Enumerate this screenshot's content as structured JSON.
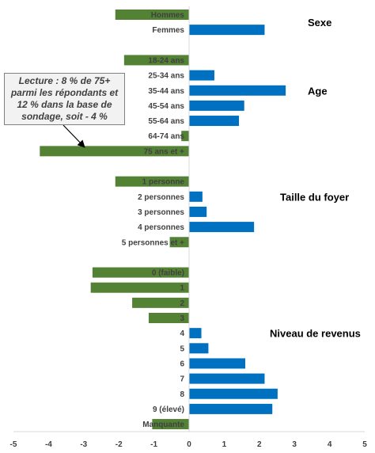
{
  "colors": {
    "positive": "#0070c0",
    "negative": "#548235",
    "axis": "#d9d9d9",
    "text": "#404040"
  },
  "annotation": {
    "text": "Lecture : 8 % de 75+ parmi les répondants et 12 % dans la base de sondage, soit - 4 %"
  },
  "chart_data": {
    "type": "bar",
    "orientation": "horizontal",
    "xlim": [
      -5,
      5
    ],
    "xticks": [
      "-5",
      "-4",
      "-3",
      "-2",
      "-1",
      "0",
      "1",
      "2",
      "3",
      "4",
      "5"
    ],
    "grid": false,
    "groups": [
      {
        "name": "Sexe",
        "categories": [
          {
            "label": "Hommes",
            "value": -2.1
          },
          {
            "label": "Femmes",
            "value": 2.15
          }
        ]
      },
      {
        "name": "Age",
        "categories": [
          {
            "label": "18-24 ans",
            "value": -1.85
          },
          {
            "label": "25-34 ans",
            "value": 0.72
          },
          {
            "label": "35-44 ans",
            "value": 2.75
          },
          {
            "label": "45-54 ans",
            "value": 1.57
          },
          {
            "label": "55-64 ans",
            "value": 1.42
          },
          {
            "label": "64-74 ans",
            "value": -0.22
          },
          {
            "label": "75 ans et +",
            "value": -4.25
          }
        ]
      },
      {
        "name": "Taille du foyer",
        "categories": [
          {
            "label": "1 personne",
            "value": -2.1
          },
          {
            "label": "2 personnes",
            "value": 0.38
          },
          {
            "label": "3 personnes",
            "value": 0.5
          },
          {
            "label": "4 personnes",
            "value": 1.85
          },
          {
            "label": "5 personnes et +",
            "value": -0.55
          }
        ]
      },
      {
        "name": "Niveau de revenus",
        "categories": [
          {
            "label": "0 (faible)",
            "value": -2.75
          },
          {
            "label": "1",
            "value": -2.8
          },
          {
            "label": "2",
            "value": -1.62
          },
          {
            "label": "3",
            "value": -1.15
          },
          {
            "label": "4",
            "value": 0.35
          },
          {
            "label": "5",
            "value": 0.55
          },
          {
            "label": "6",
            "value": 1.6
          },
          {
            "label": "7",
            "value": 2.15
          },
          {
            "label": "8",
            "value": 2.52
          },
          {
            "label": "9 (élevé)",
            "value": 2.37
          },
          {
            "label": "Manquante",
            "value": -1.05
          }
        ]
      }
    ]
  }
}
